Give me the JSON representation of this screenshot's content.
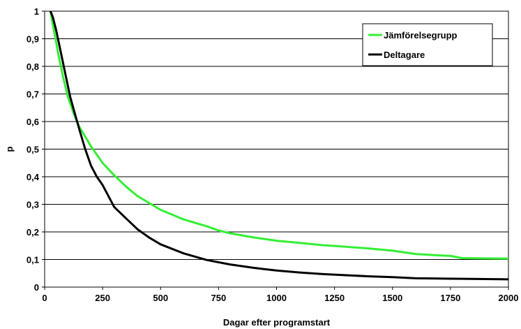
{
  "chart_data": {
    "type": "line",
    "title": "",
    "xlabel": "Dagar efter programstart",
    "ylabel": "p",
    "xlim": [
      0,
      2000
    ],
    "ylim": [
      0,
      1
    ],
    "x_ticks": [
      0,
      250,
      500,
      750,
      1000,
      1250,
      1500,
      1750,
      2000
    ],
    "x_tick_labels": [
      "0",
      "250",
      "500",
      "750",
      "1000",
      "1250",
      "1500",
      "1750",
      "2000"
    ],
    "y_ticks": [
      0,
      0.1,
      0.2,
      0.3,
      0.4,
      0.5,
      0.6,
      0.7,
      0.8,
      0.9,
      1
    ],
    "y_tick_labels": [
      "0",
      "0,1",
      "0,2",
      "0,3",
      "0,4",
      "0,5",
      "0,6",
      "0,7",
      "0,8",
      "0,9",
      "1"
    ],
    "grid": "horizontal",
    "legend_position": "top-right",
    "series": [
      {
        "name": "Jämförelsegrupp",
        "color": "#33ee33",
        "x": [
          25,
          40,
          60,
          80,
          100,
          125,
          150,
          200,
          250,
          300,
          350,
          400,
          450,
          500,
          600,
          700,
          750,
          800,
          900,
          1000,
          1100,
          1200,
          1300,
          1400,
          1500,
          1600,
          1700,
          1750,
          1800,
          1900,
          2000
        ],
        "y": [
          1.0,
          0.93,
          0.84,
          0.76,
          0.69,
          0.63,
          0.58,
          0.51,
          0.45,
          0.405,
          0.365,
          0.33,
          0.305,
          0.28,
          0.245,
          0.22,
          0.205,
          0.195,
          0.18,
          0.168,
          0.16,
          0.152,
          0.146,
          0.14,
          0.132,
          0.12,
          0.115,
          0.113,
          0.105,
          0.104,
          0.103
        ]
      },
      {
        "name": "Deltagare",
        "color": "#000000",
        "x": [
          25,
          35,
          50,
          70,
          90,
          110,
          130,
          150,
          175,
          200,
          225,
          250,
          275,
          300,
          350,
          400,
          450,
          500,
          600,
          700,
          800,
          900,
          1000,
          1100,
          1200,
          1300,
          1400,
          1500,
          1600,
          1700,
          1800,
          1900,
          2000
        ],
        "y": [
          1.0,
          0.98,
          0.93,
          0.85,
          0.77,
          0.69,
          0.63,
          0.57,
          0.5,
          0.44,
          0.4,
          0.37,
          0.33,
          0.29,
          0.25,
          0.21,
          0.18,
          0.155,
          0.122,
          0.098,
          0.082,
          0.07,
          0.06,
          0.053,
          0.047,
          0.043,
          0.039,
          0.036,
          0.032,
          0.031,
          0.03,
          0.029,
          0.028
        ]
      }
    ]
  }
}
